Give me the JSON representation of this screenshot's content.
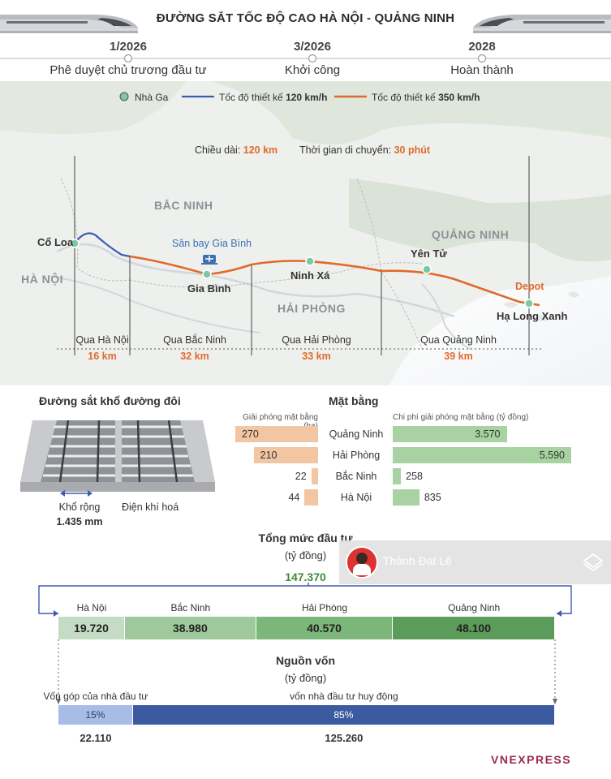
{
  "title": "ĐƯỜNG SẮT TỐC ĐỘ CAO HÀ NỘI - QUẢNG NINH",
  "timeline": [
    {
      "date": "1/2026",
      "label": "Phê duyệt chủ trương đầu tư"
    },
    {
      "date": "3/2026",
      "label": "Khởi công"
    },
    {
      "date": "2028",
      "label": "Hoàn thành"
    }
  ],
  "legend": {
    "station": "Nhà Ga",
    "speed120_prefix": "Tốc độ thiết kế",
    "speed120_value": "120 km/h",
    "speed350_prefix": "Tốc độ thiết kế",
    "speed350_value": "350 km/h",
    "colors": {
      "blue": "#3d5bb0",
      "orange": "#e06a2b",
      "station": "#7ac8a4"
    }
  },
  "route_info": {
    "length_label": "Chiều dài:",
    "length_value": "120 km",
    "time_label": "Thời gian di chuyển:",
    "time_value": "30 phút"
  },
  "regions": [
    "BẮC NINH",
    "HÀ NỘI",
    "HẢI PHÒNG",
    "QUẢNG NINH"
  ],
  "stations": [
    "Cổ Loa",
    "Gia Bình",
    "Ninh Xá",
    "Yên Tử",
    "Hạ Long Xanh"
  ],
  "airport": "Sân bay Gia Bình",
  "depot": "Depot",
  "segments": [
    {
      "name": "Qua Hà Nội",
      "length": "16 km"
    },
    {
      "name": "Qua Bắc Ninh",
      "length": "32 km"
    },
    {
      "name": "Qua Hải Phòng",
      "length": "33 km"
    },
    {
      "name": "Qua Quảng Ninh",
      "length": "39 km"
    }
  ],
  "track": {
    "title": "Đường sắt khổ đường đôi",
    "gauge_label": "Khổ rộng",
    "gauge_value": "1.435 mm",
    "electrified": "Điện khí hoá"
  },
  "land": {
    "title": "Mặt bằng",
    "area_header": "Giải phóng mặt bằng (ha)",
    "cost_header": "Chi phí giải phóng mặt bằng (tỷ đồng)",
    "rows": [
      {
        "province": "Quảng Ninh",
        "area": 270,
        "area_label": "270",
        "cost": 3570,
        "cost_label": "3.570"
      },
      {
        "province": "Hải Phòng",
        "area": 210,
        "area_label": "210",
        "cost": 5590,
        "cost_label": "5.590"
      },
      {
        "province": "Bắc Ninh",
        "area": 22,
        "area_label": "22",
        "cost": 258,
        "cost_label": "258"
      },
      {
        "province": "Hà Nội",
        "area": 44,
        "area_label": "44",
        "cost": 835,
        "cost_label": "835"
      }
    ]
  },
  "investment": {
    "title": "Tổng mức đầu tư",
    "unit": "(tỷ đồng)",
    "total": "147.370",
    "items": [
      {
        "province": "Hà Nội",
        "value": 19720,
        "label": "19.720",
        "color": "#c5dcc4"
      },
      {
        "province": "Bắc Ninh",
        "value": 38980,
        "label": "38.980",
        "color": "#9fc89c"
      },
      {
        "province": "Hải Phòng",
        "value": 40570,
        "label": "40.570",
        "color": "#7db67a"
      },
      {
        "province": "Quảng Ninh",
        "value": 48100,
        "label": "48.100",
        "color": "#5c9c5a"
      }
    ]
  },
  "funding": {
    "title": "Nguồn vốn",
    "unit": "(tỷ đồng)",
    "items": [
      {
        "label": "Vốn góp của nhà đầu tư",
        "percent": 15,
        "percent_label": "15%",
        "value": "22.110",
        "color": "#a7bde8"
      },
      {
        "label": "vốn nhà đầu tư huy động",
        "percent": 85,
        "percent_label": "85%",
        "value": "125.260",
        "color": "#3b5aa0"
      }
    ]
  },
  "overlay": {
    "name": "Thành Đạt Lê"
  },
  "brand": "VNEXPRESS"
}
